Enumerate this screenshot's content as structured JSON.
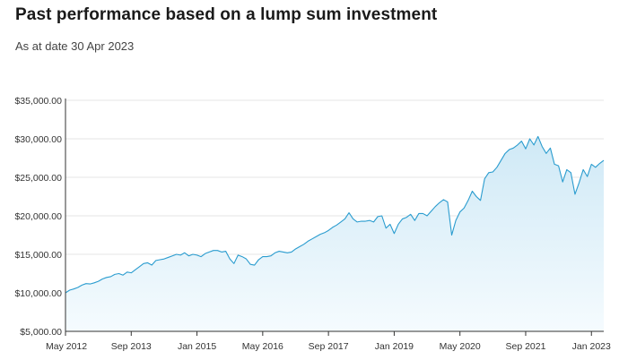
{
  "header": {
    "title": "Past performance based on a lump sum investment",
    "subtitle": "As at date 30 Apr 2023"
  },
  "colors": {
    "line": "#2a9ccf",
    "area_top": "#cfe9f6",
    "area_bottom": "#f5fbfe",
    "grid": "#e4e4e4",
    "axis": "#333333"
  },
  "chart_data": {
    "type": "area",
    "title": "Past performance based on a lump sum investment",
    "subtitle": "As at date 30 Apr 2023",
    "xlabel": "",
    "ylabel": "",
    "ylim": [
      5000,
      35000
    ],
    "xlim": [
      "2012-05",
      "2023-04"
    ],
    "grid": true,
    "y_ticks": [
      "$5,000.00",
      "$10,000.00",
      "$15,000.00",
      "$20,000.00",
      "$25,000.00",
      "$30,000.00",
      "$35,000.00"
    ],
    "y_tick_values": [
      5000,
      10000,
      15000,
      20000,
      25000,
      30000,
      35000
    ],
    "x_ticks": [
      "May 2012",
      "Sep 2013",
      "Jan 2015",
      "May 2016",
      "Sep 2017",
      "Jan 2019",
      "May 2020",
      "Sep 2021",
      "Jan 2023"
    ],
    "x_tick_dates": [
      "2012-05",
      "2013-09",
      "2015-01",
      "2016-05",
      "2017-09",
      "2019-01",
      "2020-05",
      "2021-09",
      "2023-01"
    ],
    "series": [
      {
        "start": "2012-05",
        "frequency": "monthly",
        "values": [
          10000,
          10350,
          10500,
          10700,
          11000,
          11200,
          11150,
          11300,
          11500,
          11800,
          12000,
          12100,
          12400,
          12500,
          12300,
          12700,
          12600,
          13000,
          13400,
          13800,
          13900,
          13600,
          14200,
          14300,
          14400,
          14600,
          14800,
          15000,
          14900,
          15200,
          14800,
          15000,
          14900,
          14700,
          15100,
          15300,
          15500,
          15500,
          15300,
          15400,
          14400,
          13800,
          14900,
          14700,
          14400,
          13700,
          13600,
          14300,
          14700,
          14700,
          14800,
          15200,
          15400,
          15300,
          15200,
          15300,
          15700,
          16000,
          16300,
          16700,
          17000,
          17300,
          17600,
          17800,
          18100,
          18500,
          18800,
          19200,
          19600,
          20400,
          19600,
          19200,
          19300,
          19300,
          19400,
          19200,
          19900,
          20000,
          18400,
          18900,
          17700,
          18900,
          19600,
          19800,
          20200,
          19400,
          20300,
          20300,
          20000,
          20600,
          21200,
          21700,
          22100,
          21800,
          17500,
          19400,
          20500,
          21000,
          22000,
          23200,
          22500,
          22000,
          24800,
          25600,
          25700,
          26300,
          27200,
          28100,
          28600,
          28800,
          29200,
          29700,
          28700,
          30000,
          29200,
          30300,
          29000,
          28100,
          28800,
          26700,
          26500,
          24400,
          26000,
          25600,
          22800,
          24300,
          26000,
          25100,
          26700,
          26300,
          26800,
          27200
        ]
      }
    ]
  }
}
